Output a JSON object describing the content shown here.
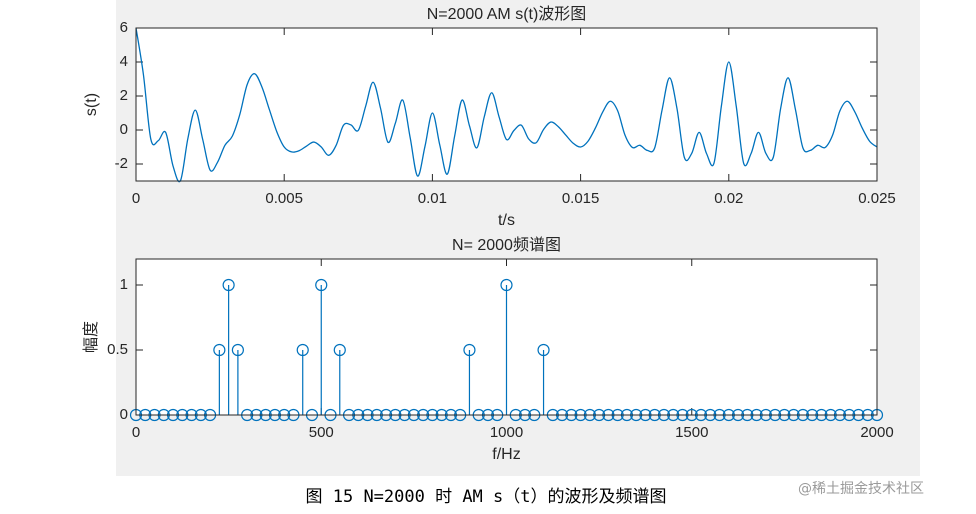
{
  "chart_data": [
    {
      "type": "line",
      "title": "N=2000 AM s(t)波形图",
      "x_label": "t/s",
      "y_label": "s(t)",
      "color": "#0072bd",
      "x": [
        0,
        0.00025,
        0.0005,
        0.00075,
        0.001,
        0.00125,
        0.0015,
        0.00175,
        0.002,
        0.00225,
        0.0025,
        0.00275,
        0.003,
        0.00325,
        0.0035,
        0.00375,
        0.004,
        0.00425,
        0.0045,
        0.00475,
        0.005,
        0.00525,
        0.0055,
        0.00575,
        0.006,
        0.00625,
        0.0065,
        0.00675,
        0.007,
        0.00725,
        0.0075,
        0.00775,
        0.008,
        0.00825,
        0.0085,
        0.00875,
        0.009,
        0.00925,
        0.0095,
        0.00975,
        0.01,
        0.01025,
        0.0105,
        0.01075,
        0.011,
        0.01125,
        0.0115,
        0.01175,
        0.012,
        0.01225,
        0.0125,
        0.01275,
        0.013,
        0.01325,
        0.0135,
        0.01375,
        0.014,
        0.01425,
        0.0145,
        0.01475,
        0.015,
        0.01525,
        0.0155,
        0.01575,
        0.016,
        0.01625,
        0.0165,
        0.01675,
        0.017,
        0.01725,
        0.0175,
        0.01775,
        0.018,
        0.01825,
        0.0185,
        0.01875,
        0.019,
        0.01925,
        0.0195,
        0.01975,
        0.02,
        0.02025,
        0.0205,
        0.02075,
        0.021,
        0.02125,
        0.0215,
        0.02175,
        0.022,
        0.02225,
        0.0225,
        0.02275,
        0.023,
        0.02325,
        0.0235,
        0.02375,
        0.024,
        0.02425,
        0.0245,
        0.02475,
        0.025
      ],
      "values": [
        6,
        3.26,
        -0.54,
        -0.63,
        -0.14,
        -2.12,
        -2.98,
        -0.5,
        1.17,
        -0.55,
        -2.36,
        -1.9,
        -0.9,
        -0.36,
        0.9,
        2.67,
        3.31,
        2.52,
        1.2,
        -0.1,
        -1,
        -1.29,
        -1.22,
        -0.95,
        -0.71,
        -1,
        -1.49,
        -0.91,
        0.28,
        0.3,
        -0.02,
        1.41,
        2.81,
        1.28,
        -0.72,
        0.4,
        1.76,
        -0.45,
        -2.71,
        -0.96,
        1,
        -0.89,
        -2.6,
        -0.36,
        1.76,
        0.25,
        -1.05,
        0.78,
        2.19,
        0.77,
        -0.56,
        -0.03,
        0.28,
        -0.53,
        -0.75,
        0.03,
        0.47,
        0.19,
        -0.3,
        -0.78,
        -1,
        -0.66,
        0.12,
        1.07,
        1.69,
        1.13,
        -0.31,
        -1.03,
        -0.9,
        -1.2,
        -1.05,
        1.19,
        3.07,
        1.28,
        -1.61,
        -1.37,
        -0.14,
        -1.39,
        -1.95,
        1.41,
        4,
        1.41,
        -1.95,
        -1.39,
        -0.14,
        -1.37,
        -1.61,
        1.28,
        3.07,
        1.19,
        -1.05,
        -1.2,
        -0.9,
        -1.03,
        -0.31,
        1.13,
        1.69,
        1.07,
        0.12,
        -0.66,
        -1
      ],
      "xlim": [
        0,
        0.025
      ],
      "xticks": [
        0,
        0.005,
        0.01,
        0.015,
        0.02,
        0.025
      ],
      "ylim": [
        -3,
        6
      ],
      "yticks": [
        -2,
        0,
        2,
        4,
        6
      ]
    },
    {
      "type": "stem",
      "title": "N= 2000频谱图",
      "x_label": "f/Hz",
      "y_label": "幅度",
      "color": "#0072bd",
      "x": [
        0,
        25,
        50,
        75,
        100,
        125,
        150,
        175,
        200,
        225,
        250,
        275,
        300,
        325,
        350,
        375,
        400,
        425,
        450,
        475,
        500,
        525,
        550,
        575,
        600,
        625,
        650,
        675,
        700,
        725,
        750,
        775,
        800,
        825,
        850,
        875,
        900,
        925,
        950,
        975,
        1000,
        1025,
        1050,
        1075,
        1100,
        1125,
        1150,
        1175,
        1200,
        1225,
        1250,
        1275,
        1300,
        1325,
        1350,
        1375,
        1400,
        1425,
        1450,
        1475,
        1500,
        1525,
        1550,
        1575,
        1600,
        1625,
        1650,
        1675,
        1700,
        1725,
        1750,
        1775,
        1800,
        1825,
        1850,
        1875,
        1900,
        1925,
        1950,
        1975,
        2000
      ],
      "values": [
        0,
        0,
        0,
        0,
        0,
        0,
        0,
        0,
        0,
        0.5,
        1,
        0.5,
        0,
        0,
        0,
        0,
        0,
        0,
        0.5,
        0,
        1,
        0,
        0.5,
        0,
        0,
        0,
        0,
        0,
        0,
        0,
        0,
        0,
        0,
        0,
        0,
        0,
        0.5,
        0,
        0,
        0,
        1,
        0,
        0,
        0,
        0.5,
        0,
        0,
        0,
        0,
        0,
        0,
        0,
        0,
        0,
        0,
        0,
        0,
        0,
        0,
        0,
        0,
        0,
        0,
        0,
        0,
        0,
        0,
        0,
        0,
        0,
        0,
        0,
        0,
        0,
        0,
        0,
        0,
        0,
        0,
        0,
        0
      ],
      "xlim": [
        0,
        2000
      ],
      "xticks": [
        0,
        500,
        1000,
        1500,
        2000
      ],
      "ylim": [
        0,
        1.2
      ],
      "yticks": [
        0,
        0.5,
        1
      ]
    }
  ],
  "caption": "图 15 N=2000 时 AM s（t）的波形及频谱图",
  "watermark": "@稀土掘金技术社区"
}
